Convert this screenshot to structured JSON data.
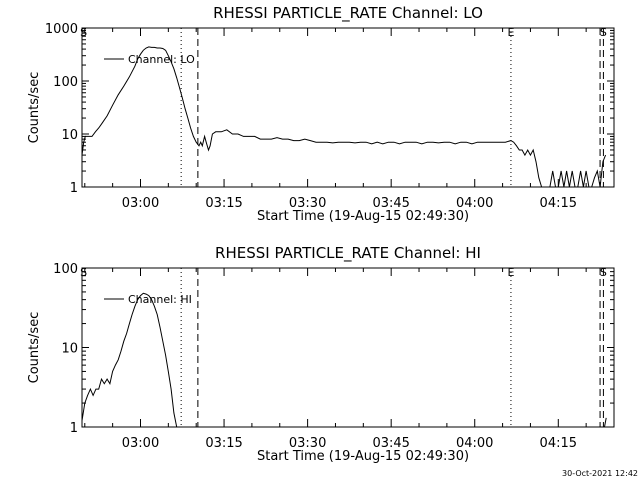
{
  "footer_date": "30-Oct-2021 12:42",
  "chart_data": [
    {
      "type": "line",
      "title": "RHESSI PARTICLE_RATE Channel: LO",
      "ylabel": "Counts/sec",
      "xlabel": "Start Time (19-Aug-15 02:49:30)",
      "yscale": "log",
      "ylim": [
        1,
        1000
      ],
      "xlim_minutes": [
        0,
        95.5
      ],
      "x_tick_labels": [
        "03:00",
        "03:15",
        "03:30",
        "03:45",
        "04:00",
        "04:15"
      ],
      "x_tick_minutes": [
        10.5,
        25.5,
        40.5,
        55.5,
        70.5,
        85.5
      ],
      "y_tick_labels": [
        "1",
        "10",
        "100",
        "1000"
      ],
      "y_tick_values": [
        1,
        10,
        100,
        1000
      ],
      "legend": "Channel: LO",
      "markers": [
        {
          "label": "S",
          "minute": 0.3,
          "style": "none"
        },
        {
          "label": "",
          "minute": 17.8,
          "style": "dotted"
        },
        {
          "label": "",
          "minute": 20.8,
          "style": "dashed"
        },
        {
          "label": "E",
          "minute": 77.0,
          "style": "dotted"
        },
        {
          "label": "",
          "minute": 93.0,
          "style": "dashed"
        },
        {
          "label": "S",
          "minute": 93.6,
          "style": "dashed"
        }
      ],
      "series": [
        {
          "x": [
            0,
            0.3,
            0.6,
            1.2,
            1.8,
            2.4,
            3,
            3.6,
            4.5,
            5.5,
            6.5,
            7.5,
            8.5,
            9.5,
            10,
            10.5,
            11,
            11.5,
            12,
            12.5,
            13,
            13.5,
            14,
            14.5,
            15,
            15.5,
            16,
            16.5,
            17,
            17.5,
            18,
            18.5,
            19,
            19.5,
            20,
            20.5,
            21,
            21.3,
            21.6,
            22,
            22.3,
            22.7,
            23,
            23.4,
            24,
            25,
            26,
            27,
            28,
            29,
            30,
            31,
            32,
            33,
            34,
            35,
            36,
            37,
            38,
            39,
            40,
            41,
            42,
            43,
            44,
            45,
            46,
            47,
            48,
            49,
            50,
            51,
            52,
            53,
            54,
            55,
            56,
            57,
            58,
            59,
            60,
            61,
            62,
            63,
            64,
            65,
            66,
            67,
            68,
            69,
            70,
            71,
            72,
            73,
            74,
            75,
            76,
            77,
            77.5,
            78,
            78.5,
            79,
            79.5,
            80,
            80.5,
            81,
            81.5,
            82,
            82.5,
            83,
            83.5,
            84,
            84.5,
            85,
            85.5,
            86,
            86.5,
            87,
            87.5,
            88,
            88.5,
            89,
            89.5,
            90,
            90.5,
            91,
            91.5,
            92,
            92.5,
            93,
            93.5,
            94
          ],
          "y": [
            4,
            7,
            9,
            9,
            9,
            11,
            13,
            16,
            22,
            35,
            55,
            80,
            120,
            190,
            260,
            320,
            380,
            420,
            440,
            430,
            430,
            420,
            420,
            410,
            380,
            300,
            230,
            170,
            115,
            75,
            48,
            30,
            20,
            13,
            9,
            7,
            6,
            7,
            6,
            9,
            7,
            5,
            6,
            10,
            11,
            11,
            12,
            10,
            10,
            9,
            9,
            9,
            8,
            8,
            8,
            8.5,
            8,
            8,
            7.5,
            7.5,
            8,
            7.5,
            7,
            7,
            7,
            6.8,
            7,
            7,
            7,
            6.8,
            7,
            7,
            6.5,
            7,
            6.5,
            7,
            7,
            6.5,
            7,
            7,
            7,
            6.5,
            7,
            7,
            6.8,
            7,
            7,
            6.5,
            7,
            7,
            6.5,
            7,
            7,
            7,
            7,
            7,
            7,
            7.5,
            7,
            6,
            5,
            5,
            4,
            5,
            4,
            5,
            3,
            1.5,
            1,
            1,
            1,
            1,
            2,
            1,
            1,
            2,
            1,
            2,
            1,
            2,
            1,
            1,
            2,
            1,
            2,
            1,
            1,
            1.5,
            2,
            1,
            3,
            4
          ]
        }
      ]
    },
    {
      "type": "line",
      "title": "RHESSI PARTICLE_RATE Channel: HI",
      "ylabel": "Counts/sec",
      "xlabel": "Start Time (19-Aug-15 02:49:30)",
      "yscale": "log",
      "ylim": [
        1,
        100
      ],
      "xlim_minutes": [
        0,
        95.5
      ],
      "x_tick_labels": [
        "03:00",
        "03:15",
        "03:30",
        "03:45",
        "04:00",
        "04:15"
      ],
      "x_tick_minutes": [
        10.5,
        25.5,
        40.5,
        55.5,
        70.5,
        85.5
      ],
      "y_tick_labels": [
        "1",
        "10",
        "100"
      ],
      "y_tick_values": [
        1,
        10,
        100
      ],
      "legend": "Channel: HI",
      "markers": [
        {
          "label": "S",
          "minute": 0.3,
          "style": "none"
        },
        {
          "label": "",
          "minute": 17.8,
          "style": "dotted"
        },
        {
          "label": "",
          "minute": 20.8,
          "style": "dashed"
        },
        {
          "label": "E",
          "minute": 77.0,
          "style": "dotted"
        },
        {
          "label": "",
          "minute": 93.0,
          "style": "dashed"
        },
        {
          "label": "S",
          "minute": 93.6,
          "style": "dashed"
        }
      ],
      "series": [
        {
          "x": [
            0,
            0.5,
            1,
            1.5,
            2,
            2.5,
            3,
            3.5,
            4,
            4.5,
            5,
            5.5,
            6,
            6.5,
            7,
            7.5,
            8,
            8.5,
            9,
            9.5,
            10,
            10.5,
            11,
            11.5,
            12,
            12.5,
            13,
            13.5,
            14,
            14.5,
            15,
            15.5,
            16,
            16.5,
            17
          ],
          "y": [
            1.2,
            2,
            2.5,
            3,
            2.5,
            3,
            3,
            4,
            3.5,
            4,
            3.5,
            5,
            6,
            7,
            9,
            12,
            15,
            20,
            26,
            33,
            40,
            45,
            48,
            47,
            45,
            40,
            33,
            26,
            18,
            12,
            8,
            5,
            3,
            1.5,
            1
          ],
          "tail": {
            "x": [
              93.8,
              94.1
            ],
            "y": [
              1.0,
              1.3
            ]
          }
        }
      ]
    }
  ]
}
